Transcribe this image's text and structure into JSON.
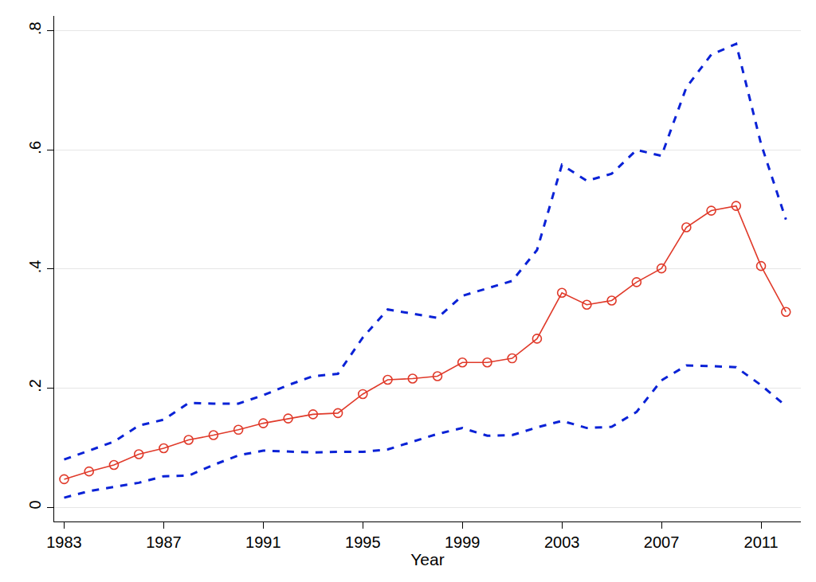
{
  "chart_data": {
    "type": "line",
    "x_label": "Year",
    "x": [
      1983,
      1984,
      1985,
      1986,
      1987,
      1988,
      1989,
      1990,
      1991,
      1992,
      1993,
      1994,
      1995,
      1996,
      1997,
      1998,
      1999,
      2000,
      2001,
      2002,
      2003,
      2004,
      2005,
      2006,
      2007,
      2008,
      2009,
      2010,
      2011,
      2012
    ],
    "series": [
      {
        "color": "#0a22d6",
        "line_style": "dash",
        "marker": "none",
        "values": [
          0.08,
          0.095,
          0.11,
          0.137,
          0.147,
          0.175,
          0.174,
          0.174,
          0.188,
          0.205,
          0.22,
          0.224,
          0.285,
          0.332,
          0.325,
          0.318,
          0.355,
          0.368,
          0.38,
          0.432,
          0.575,
          0.548,
          0.56,
          0.6,
          0.59,
          0.705,
          0.76,
          0.778,
          0.61,
          0.483
        ]
      },
      {
        "color": "#0a22d6",
        "line_style": "dash",
        "marker": "none",
        "values": [
          0.016,
          0.027,
          0.034,
          0.041,
          0.052,
          0.053,
          0.071,
          0.087,
          0.095,
          0.093,
          0.092,
          0.093,
          0.093,
          0.097,
          0.11,
          0.123,
          0.133,
          0.12,
          0.121,
          0.134,
          0.145,
          0.133,
          0.135,
          0.16,
          0.213,
          0.238,
          0.237,
          0.235,
          0.205,
          0.17
        ]
      },
      {
        "color": "#e03a2a",
        "line_style": "solid",
        "marker": "circle-open",
        "values": [
          0.047,
          0.06,
          0.071,
          0.089,
          0.099,
          0.113,
          0.121,
          0.13,
          0.141,
          0.149,
          0.156,
          0.158,
          0.19,
          0.214,
          0.216,
          0.22,
          0.243,
          0.243,
          0.25,
          0.283,
          0.36,
          0.34,
          0.347,
          0.378,
          0.401,
          0.47,
          0.498,
          0.506,
          0.405,
          0.328
        ]
      }
    ],
    "xlim": [
      1982.6,
      2012.6
    ],
    "xticks": [
      1983,
      1987,
      1991,
      1995,
      1999,
      2003,
      2007,
      2011
    ],
    "ylim": [
      -0.024,
      0.825
    ],
    "yticks": [
      0,
      {
        "value": 0.2,
        "label": ".2"
      },
      {
        "value": 0.4,
        "label": ".4"
      },
      {
        "value": 0.6,
        "label": ".6"
      },
      {
        "value": 0.8,
        "label": ".8"
      }
    ],
    "grid": true
  }
}
